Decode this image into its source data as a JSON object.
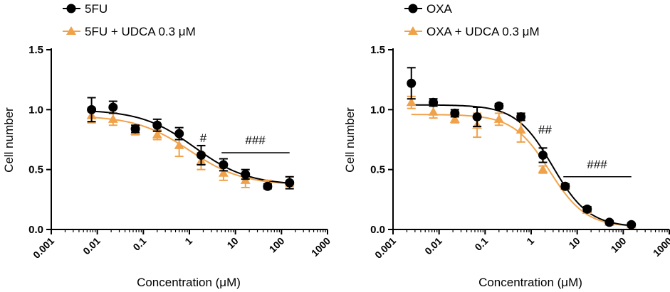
{
  "colors": {
    "control": "#000000",
    "treated": "#F0A24A"
  },
  "chart_data": [
    {
      "type": "scatter",
      "title": "",
      "xlabel": "Concentration (μM)",
      "ylabel": "Cell number",
      "xscale": "log",
      "xlim": [
        0.001,
        1000
      ],
      "ylim": [
        0.0,
        1.5
      ],
      "x_ticks": [
        "0.001",
        "0.01",
        "0.1",
        "1",
        "10",
        "100",
        "1000"
      ],
      "y_ticks": [
        "0.0",
        "0.5",
        "1.0",
        "1.5"
      ],
      "legend": {
        "placement": "top-left",
        "entries": [
          "5FU",
          "5FU + UDCA 0.3 μM"
        ]
      },
      "series": [
        {
          "name": "5FU",
          "marker": "circle",
          "x": [
            0.0075,
            0.022,
            0.067,
            0.2,
            0.6,
            1.8,
            5.5,
            16.5,
            50,
            150
          ],
          "y": [
            1.0,
            1.02,
            0.84,
            0.87,
            0.8,
            0.62,
            0.54,
            0.46,
            0.36,
            0.39
          ],
          "err": [
            0.1,
            0.05,
            0.03,
            0.05,
            0.05,
            0.08,
            0.05,
            0.04,
            0.02,
            0.05
          ],
          "fit": {
            "top": 1.0,
            "bottom": 0.37,
            "ec50": 1.3,
            "hill": 0.75
          }
        },
        {
          "name": "5FU + UDCA 0.3 μM",
          "marker": "triangle",
          "x": [
            0.0075,
            0.022,
            0.067,
            0.2,
            0.6,
            1.8,
            5.5,
            16.5,
            50,
            150
          ],
          "y": [
            0.95,
            0.92,
            0.82,
            0.79,
            0.7,
            0.57,
            0.47,
            0.41,
            0.38,
            0.4
          ],
          "err": [
            0.06,
            0.05,
            0.03,
            0.04,
            0.09,
            0.07,
            0.06,
            0.06,
            0.03,
            0.04
          ],
          "fit": {
            "top": 0.95,
            "bottom": 0.37,
            "ec50": 1.0,
            "hill": 0.75
          }
        }
      ],
      "annotations": [
        {
          "text": "#",
          "x": 2.0,
          "y": 0.73
        },
        {
          "text": "###",
          "x": 27,
          "y": 0.71,
          "line_from": 5,
          "line_to": 150,
          "line_y": 0.64
        }
      ]
    },
    {
      "type": "scatter",
      "title": "",
      "xlabel": "Concentration (μM)",
      "ylabel": "Cell number",
      "xscale": "log",
      "xlim": [
        0.001,
        1000
      ],
      "ylim": [
        0.0,
        1.5
      ],
      "x_ticks": [
        "0.001",
        "0.01",
        "0.1",
        "1",
        "10",
        "100",
        "1000"
      ],
      "y_ticks": [
        "0.0",
        "0.5",
        "1.0",
        "1.5"
      ],
      "legend": {
        "placement": "top-left",
        "entries": [
          "OXA",
          "OXA + UDCA 0.3 μM"
        ]
      },
      "series": [
        {
          "name": "OXA",
          "marker": "circle",
          "x": [
            0.0025,
            0.0075,
            0.022,
            0.067,
            0.2,
            0.6,
            1.8,
            5.5,
            16.5,
            50,
            150
          ],
          "y": [
            1.22,
            1.06,
            0.97,
            0.94,
            1.03,
            0.94,
            0.62,
            0.36,
            0.17,
            0.06,
            0.04
          ],
          "err": [
            0.13,
            0.03,
            0.03,
            0.08,
            0.02,
            0.03,
            0.06,
            0.02,
            0.02,
            0.01,
            0.01
          ],
          "fit": {
            "top": 1.04,
            "bottom": 0.02,
            "ec50": 2.9,
            "hill": 1.1
          }
        },
        {
          "name": "OXA + UDCA 0.3 μM",
          "marker": "triangle",
          "x": [
            0.0025,
            0.0075,
            0.022,
            0.067,
            0.2,
            0.6,
            1.8,
            5.5,
            16.5,
            50,
            150
          ],
          "y": [
            1.06,
            0.98,
            0.92,
            0.87,
            0.92,
            0.83,
            0.5,
            0.36,
            0.16,
            0.06,
            0.04
          ],
          "err": [
            0.05,
            0.05,
            0.03,
            0.1,
            0.05,
            0.1,
            0.03,
            0.02,
            0.02,
            0.01,
            0.01
          ],
          "fit": {
            "top": 0.96,
            "bottom": 0.02,
            "ec50": 2.5,
            "hill": 1.1
          }
        }
      ],
      "annotations": [
        {
          "text": "##",
          "x": 2.0,
          "y": 0.8
        },
        {
          "text": "###",
          "x": 27,
          "y": 0.51,
          "line_from": 5,
          "line_to": 150,
          "line_y": 0.44
        }
      ]
    }
  ]
}
